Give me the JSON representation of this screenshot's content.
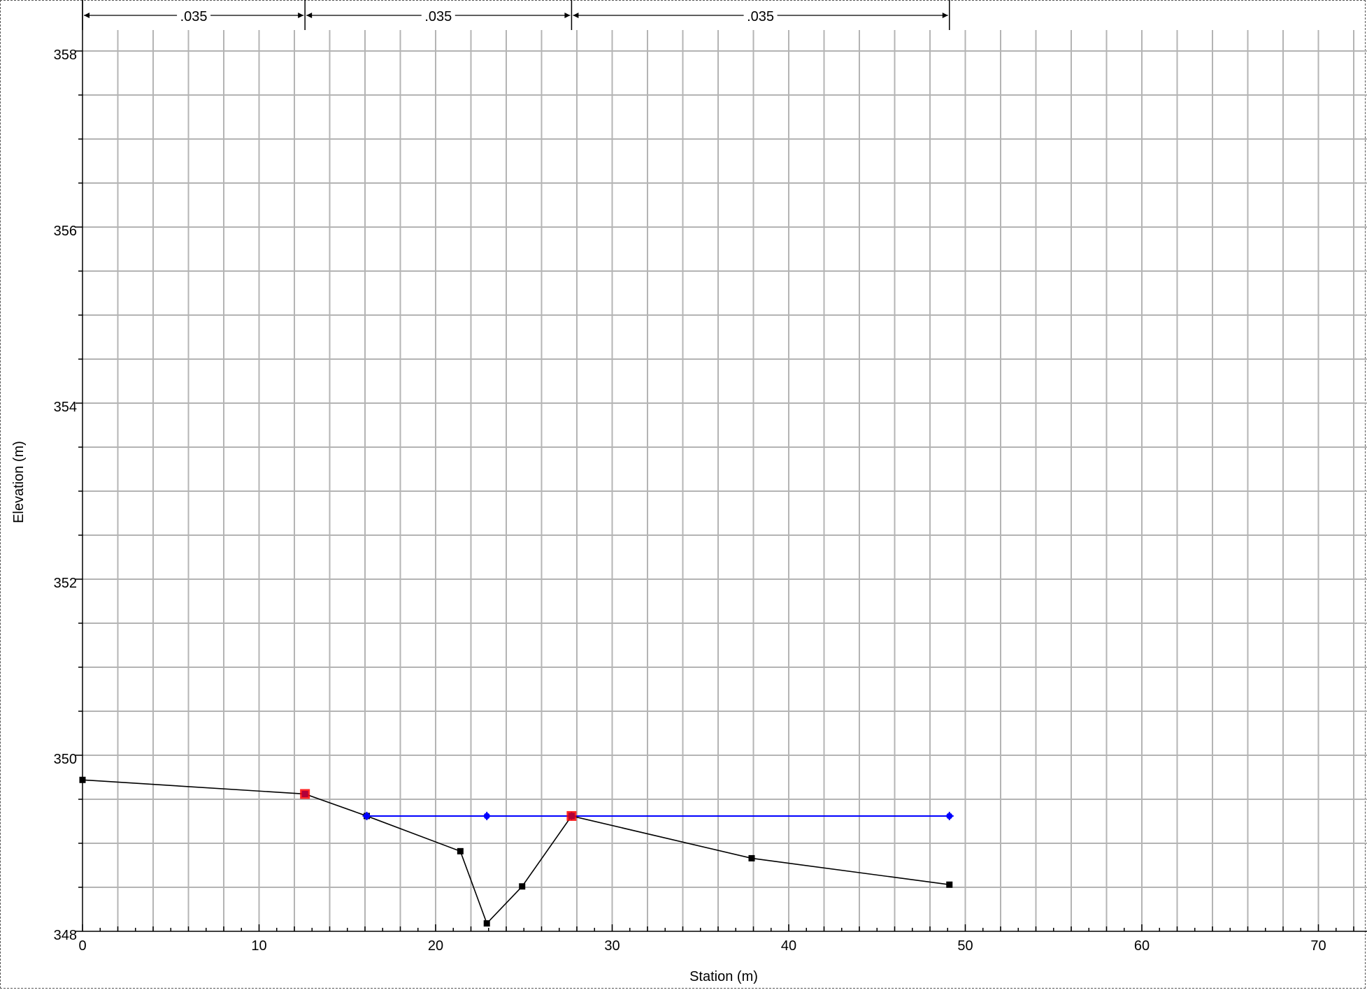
{
  "chart_data": {
    "type": "line",
    "xlabel": "Station (m)",
    "ylabel": "Elevation (m)",
    "xlim": [
      0,
      72
    ],
    "ylim": [
      348,
      358.5
    ],
    "x_ticks": [
      0,
      10,
      20,
      30,
      40,
      50,
      60,
      70
    ],
    "x_tick_labels": [
      "0",
      "10",
      "20",
      "30",
      "40",
      "50",
      "60",
      "70"
    ],
    "y_ticks": [
      348,
      350,
      352,
      354,
      356,
      358
    ],
    "y_tick_labels": [
      "348",
      "350",
      "352",
      "354",
      "356",
      "358"
    ],
    "grid": true,
    "series": [
      {
        "kind": "ground",
        "color": "#000000",
        "x": [
          0,
          12.6,
          16.1,
          21.4,
          22.9,
          24.9,
          27.7,
          37.9,
          49.1
        ],
        "y": [
          349.72,
          349.56,
          349.31,
          348.91,
          348.09,
          348.51,
          349.31,
          348.83,
          348.53
        ]
      },
      {
        "kind": "water-surface",
        "color": "#0000ff",
        "x": [
          16.1,
          22.9,
          27.7,
          49.1
        ],
        "y": [
          349.31,
          349.31,
          349.31,
          349.31
        ]
      }
    ],
    "bank_stations": {
      "color": "#ff0000",
      "x": [
        12.6,
        27.7
      ],
      "y": [
        349.56,
        349.31
      ]
    },
    "manning_n": {
      "boundaries": [
        0,
        12.6,
        27.7,
        49.1
      ],
      "values": [
        ".035",
        ".035",
        ".035"
      ]
    }
  }
}
